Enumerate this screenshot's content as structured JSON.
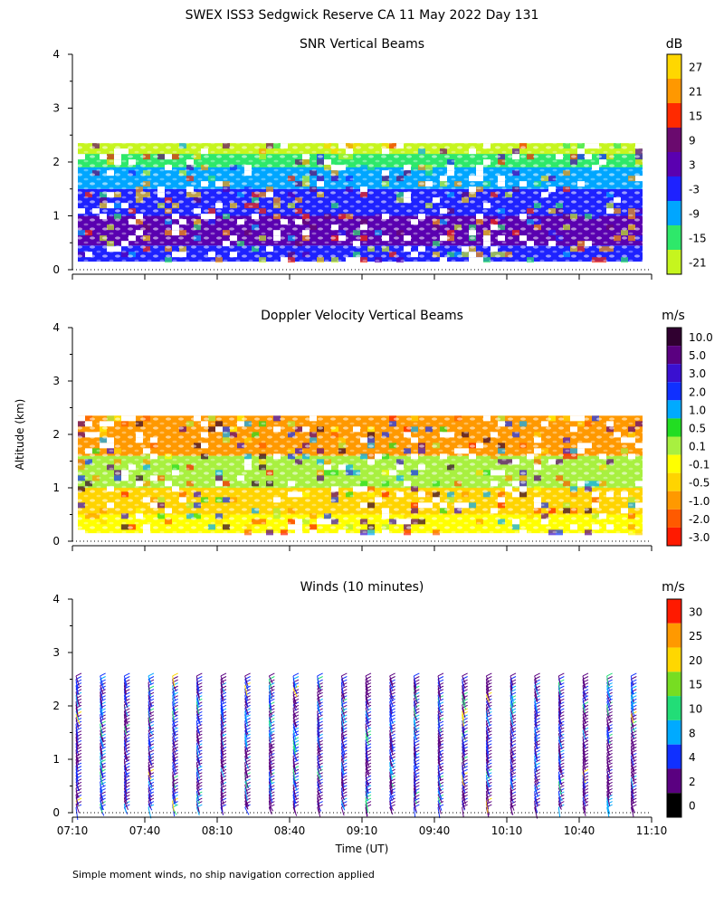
{
  "figure": {
    "title": "SWEX ISS3 Sedgwick Reserve CA  11 May 2022 Day 131",
    "ylabel": "Altitude (km)",
    "xlabel": "Time (UT)",
    "footnote": "Simple moment winds, no ship navigation correction applied"
  },
  "chart_data": [
    {
      "type": "heatmap",
      "title": "SNR Vertical Beams",
      "colorbar_title": "dB",
      "colorbar_labels": [
        "27",
        "21",
        "15",
        "9",
        "3",
        "-3",
        "-9",
        "-15",
        "-21"
      ],
      "colorbar_colors": [
        "#ffd700",
        "#ff9800",
        "#ff2a00",
        "#6a0a6e",
        "#5a00b0",
        "#1e22ff",
        "#00a6ff",
        "#2ee86a",
        "#c6f51e"
      ],
      "ylim": [
        0,
        4
      ],
      "y_ticks": [
        "0",
        "1",
        "2",
        "3",
        "4"
      ],
      "xlim": [
        "07:10",
        "11:10"
      ],
      "data_top_km": 2.35,
      "data_bottom_km": 0.15,
      "grid": false,
      "bands": [
        {
          "from_km": 0.15,
          "to_km": 0.45,
          "color": "#1e22ff"
        },
        {
          "from_km": 0.45,
          "to_km": 1.0,
          "color": "#5a00b0"
        },
        {
          "from_km": 1.0,
          "to_km": 1.5,
          "color": "#1e22ff"
        },
        {
          "from_km": 1.5,
          "to_km": 1.9,
          "color": "#00a6ff"
        },
        {
          "from_km": 1.9,
          "to_km": 2.15,
          "color": "#2ee86a"
        },
        {
          "from_km": 2.15,
          "to_km": 2.35,
          "color": "#c6f51e"
        }
      ]
    },
    {
      "type": "heatmap",
      "title": "Doppler Velocity Vertical Beams",
      "colorbar_title": "m/s",
      "colorbar_labels": [
        "10.0",
        "5.0",
        "3.0",
        "2.0",
        "1.0",
        "0.5",
        "0.1",
        "-0.1",
        "-0.5",
        "-1.0",
        "-2.0",
        "-3.0"
      ],
      "colorbar_colors": [
        "#300030",
        "#5a0080",
        "#3a10d0",
        "#1030ff",
        "#00aaff",
        "#22dd22",
        "#a8f040",
        "#ffff00",
        "#ffd400",
        "#ff9900",
        "#ff5a00",
        "#ff1a00"
      ],
      "ylim": [
        0,
        4
      ],
      "y_ticks": [
        "0",
        "1",
        "2",
        "3",
        "4"
      ],
      "xlim": [
        "07:10",
        "11:10"
      ],
      "data_top_km": 2.35,
      "data_bottom_km": 0.15,
      "grid": false,
      "bands": [
        {
          "from_km": 0.15,
          "to_km": 0.5,
          "color": "#ffff00"
        },
        {
          "from_km": 0.5,
          "to_km": 1.0,
          "color": "#ffd400"
        },
        {
          "from_km": 1.0,
          "to_km": 1.6,
          "color": "#a8f040"
        },
        {
          "from_km": 1.6,
          "to_km": 2.35,
          "color": "#ff9900"
        }
      ]
    },
    {
      "type": "scatter",
      "title": "Winds (10 minutes)",
      "colorbar_title": "m/s",
      "colorbar_labels": [
        "30",
        "25",
        "20",
        "15",
        "10",
        "8",
        "4",
        "2",
        "0"
      ],
      "colorbar_colors": [
        "#ff1a00",
        "#ff9900",
        "#ffd700",
        "#77dd22",
        "#22dd77",
        "#00aaff",
        "#1030ff",
        "#5a0080",
        "#000000"
      ],
      "ylim": [
        0,
        4
      ],
      "y_ticks": [
        "0",
        "1",
        "2",
        "3",
        "4"
      ],
      "x_ticks": [
        "07:10",
        "07:40",
        "08:10",
        "08:40",
        "09:10",
        "09:40",
        "10:10",
        "10:40",
        "11:10"
      ],
      "xlim": [
        "07:10",
        "11:10"
      ],
      "grid": false,
      "profile_times": [
        "07:10",
        "07:20",
        "07:30",
        "07:40",
        "07:50",
        "08:00",
        "08:10",
        "08:20",
        "08:30",
        "08:40",
        "08:50",
        "09:00",
        "09:10",
        "09:20",
        "09:30",
        "09:40",
        "09:50",
        "10:00",
        "10:10",
        "10:20",
        "10:30",
        "10:40",
        "10:50",
        "11:00"
      ],
      "profile_top_km": 2.6,
      "typical_speed": "4-8"
    }
  ]
}
